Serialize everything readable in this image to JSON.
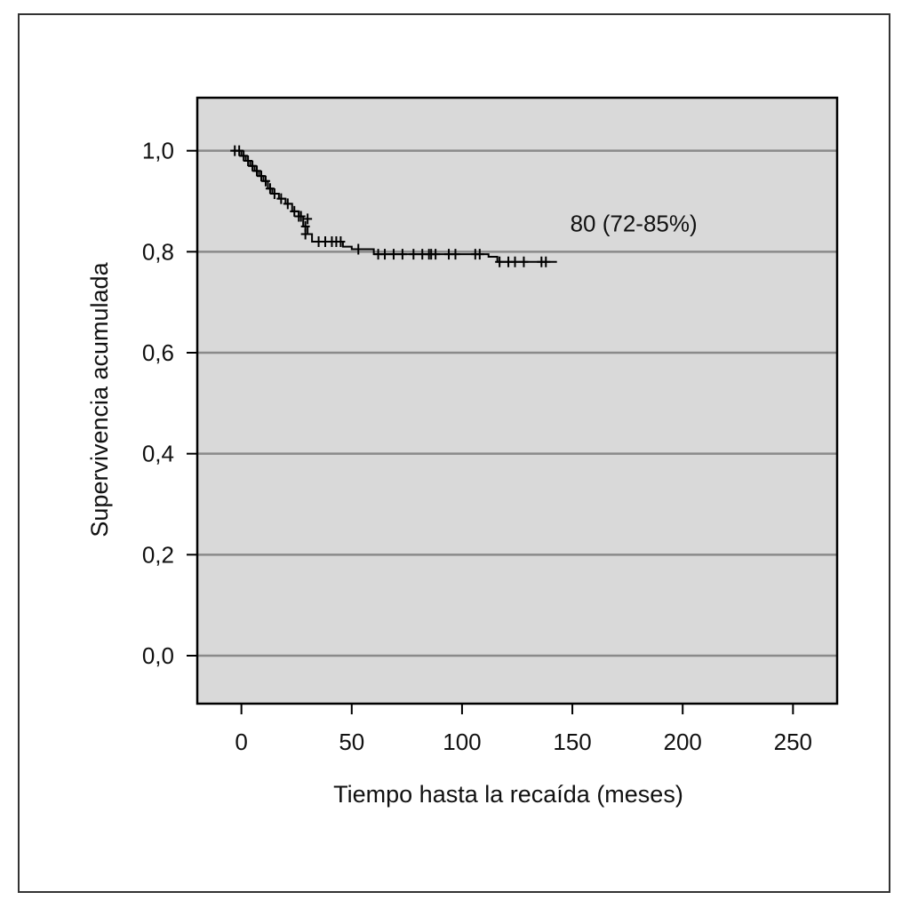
{
  "chart_data": {
    "type": "line",
    "title": "",
    "xlabel": "Tiempo hasta la recaída (meses)",
    "ylabel": "Supervivencia acumulada",
    "xlim": [
      -20,
      270
    ],
    "ylim": [
      -0.095,
      1.105
    ],
    "x_ticks": [
      0,
      50,
      100,
      150,
      200,
      250
    ],
    "x_tick_labels": [
      "0",
      "50",
      "100",
      "150",
      "200",
      "250"
    ],
    "y_ticks": [
      0.0,
      0.2,
      0.4,
      0.6,
      0.8,
      1.0
    ],
    "y_tick_labels": [
      "0,0",
      "0,2",
      "0,4",
      "0,6",
      "0,8",
      "1,0"
    ],
    "grid": "horizontal",
    "plot_background": "#d9d9d9",
    "grid_color": "#8a8a8a",
    "line_color": "#000000",
    "series": [
      {
        "steps": [
          [
            -4,
            1.0
          ],
          [
            0,
            0.99
          ],
          [
            2,
            0.98
          ],
          [
            4,
            0.97
          ],
          [
            6,
            0.96
          ],
          [
            8,
            0.95
          ],
          [
            10,
            0.94
          ],
          [
            12,
            0.925
          ],
          [
            14,
            0.915
          ],
          [
            17,
            0.905
          ],
          [
            20,
            0.895
          ],
          [
            23,
            0.88
          ],
          [
            26,
            0.87
          ],
          [
            28,
            0.85
          ],
          [
            30,
            0.835
          ],
          [
            32,
            0.82
          ],
          [
            46,
            0.81
          ],
          [
            50,
            0.805
          ],
          [
            60,
            0.795
          ],
          [
            112,
            0.79
          ],
          [
            116,
            0.78
          ],
          [
            143,
            0.78
          ]
        ],
        "censored": [
          [
            -3,
            1.0
          ],
          [
            -1,
            1.0
          ],
          [
            1,
            0.99
          ],
          [
            3,
            0.98
          ],
          [
            5,
            0.97
          ],
          [
            7,
            0.96
          ],
          [
            9,
            0.95
          ],
          [
            11,
            0.94
          ],
          [
            13,
            0.925
          ],
          [
            15,
            0.915
          ],
          [
            18,
            0.905
          ],
          [
            21,
            0.895
          ],
          [
            24,
            0.88
          ],
          [
            26,
            0.87
          ],
          [
            27,
            0.87
          ],
          [
            29,
            0.85
          ],
          [
            29,
            0.835
          ],
          [
            30,
            0.865
          ],
          [
            35,
            0.82
          ],
          [
            38,
            0.82
          ],
          [
            41,
            0.82
          ],
          [
            43,
            0.82
          ],
          [
            45,
            0.82
          ],
          [
            53,
            0.805
          ],
          [
            62,
            0.795
          ],
          [
            65,
            0.795
          ],
          [
            69,
            0.795
          ],
          [
            73,
            0.795
          ],
          [
            78,
            0.795
          ],
          [
            82,
            0.795
          ],
          [
            85,
            0.795
          ],
          [
            86,
            0.795
          ],
          [
            88,
            0.795
          ],
          [
            94,
            0.795
          ],
          [
            97,
            0.795
          ],
          [
            106,
            0.795
          ],
          [
            108,
            0.795
          ],
          [
            117,
            0.78
          ],
          [
            121,
            0.78
          ],
          [
            124,
            0.78
          ],
          [
            128,
            0.78
          ],
          [
            136,
            0.78
          ],
          [
            138,
            0.78
          ]
        ]
      }
    ],
    "annotations": [
      {
        "text": "80 (72-85%)",
        "x": 149,
        "y": 0.84
      }
    ]
  }
}
